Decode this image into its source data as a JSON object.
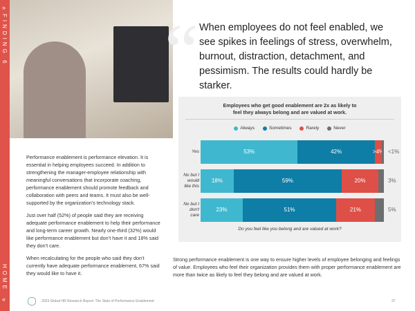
{
  "sidebar": {
    "finding": "FINDING 6",
    "home": "HOME"
  },
  "headline": "When employees do not feel enabled, we see spikes in feelings of stress, overwhelm, burnout, distraction, detachment, and pessimism. The results could hardly be starker.",
  "left_text": [
    "Performance enablement is performance elevation. It is essential in helping employees succeed. In addition to strengthening the manager-employee relationship with meaningful conversations that incorporate coaching, performance enablement should promote feedback and collaboration with peers and teams. It must also be well-supported by the organization’s technology stack.",
    "Just over half (52%) of people said they are receiving adequate performance enablement to help their performance and long-term career growth. Nearly one-third (32%) would like performance enablement but don’t have it and 18% said they don’t care.",
    "When recalculating for the people who said they don’t currently have adequate performance enablement, 67% said they would like to have it."
  ],
  "chart_data": {
    "type": "stacked-bar-horizontal",
    "title": "Employees who get good enablement are 2x as likely to feel they always belong and are valued at work.",
    "categories": [
      "Yes",
      "No but I would like this",
      "No but I don't care"
    ],
    "series": [
      {
        "name": "Always",
        "color": "#3fb8cf",
        "values": [
          53,
          18,
          23
        ],
        "value_labels": [
          "53%",
          "18%",
          "23%"
        ]
      },
      {
        "name": "Sometimes",
        "color": "#0e7ea6",
        "values": [
          42,
          59,
          51
        ],
        "value_labels": [
          "42%",
          "59%",
          "51%"
        ]
      },
      {
        "name": "Rarely",
        "color": "#de4f47",
        "values": [
          4,
          20,
          21
        ],
        "value_labels": [
          ">4%",
          "20%",
          "21%"
        ]
      },
      {
        "name": "Never",
        "color": "#6d6e70",
        "values": [
          1,
          3,
          5
        ],
        "value_labels": [
          "<1%",
          "3%",
          "5%"
        ]
      }
    ],
    "x_label": "Do you feel like you belong and are valued at work?"
  },
  "body_text": "Strong performance enablement is one way to ensure higher levels of employee belonging and feelings of value. Employees who feel their organization provides them with proper performance enablement are more than twice as likely to feel they belong and are valued at work.",
  "footer": {
    "source": "2023 Global HR Research Report: The State of Performance Enablement",
    "page": 37
  }
}
